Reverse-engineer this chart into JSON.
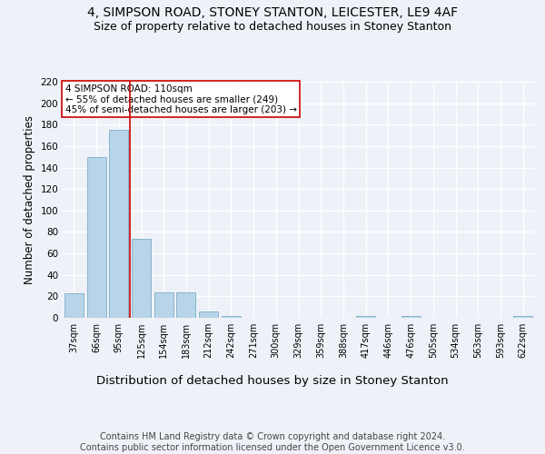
{
  "title1": "4, SIMPSON ROAD, STONEY STANTON, LEICESTER, LE9 4AF",
  "title2": "Size of property relative to detached houses in Stoney Stanton",
  "xlabel": "Distribution of detached houses by size in Stoney Stanton",
  "ylabel": "Number of detached properties",
  "footer": "Contains HM Land Registry data © Crown copyright and database right 2024.\nContains public sector information licensed under the Open Government Licence v3.0.",
  "bar_labels": [
    "37sqm",
    "66sqm",
    "95sqm",
    "125sqm",
    "154sqm",
    "183sqm",
    "212sqm",
    "242sqm",
    "271sqm",
    "300sqm",
    "329sqm",
    "359sqm",
    "388sqm",
    "417sqm",
    "446sqm",
    "476sqm",
    "505sqm",
    "534sqm",
    "563sqm",
    "593sqm",
    "622sqm"
  ],
  "bar_values": [
    23,
    150,
    175,
    74,
    24,
    24,
    6,
    2,
    0,
    0,
    0,
    0,
    0,
    2,
    0,
    2,
    0,
    0,
    0,
    0,
    2
  ],
  "bar_color": "#b8d4e8",
  "bar_edgecolor": "#7aaec8",
  "annotation_box_text": "4 SIMPSON ROAD: 110sqm\n← 55% of detached houses are smaller (249)\n45% of semi-detached houses are larger (203) →",
  "annotation_box_color": "#ffffff",
  "annotation_box_edgecolor": "#cc0000",
  "vline_color": "#cc0000",
  "vline_x_index": 2.5,
  "ylim": [
    0,
    220
  ],
  "yticks": [
    0,
    20,
    40,
    60,
    80,
    100,
    120,
    140,
    160,
    180,
    200,
    220
  ],
  "background_color": "#eef2f8",
  "plot_background": "#eef2f8",
  "grid_color": "#ffffff",
  "title1_fontsize": 10,
  "title2_fontsize": 9,
  "xlabel_fontsize": 9.5,
  "ylabel_fontsize": 8.5,
  "footer_fontsize": 7,
  "tick_fontsize": 7,
  "ytick_fontsize": 7.5
}
